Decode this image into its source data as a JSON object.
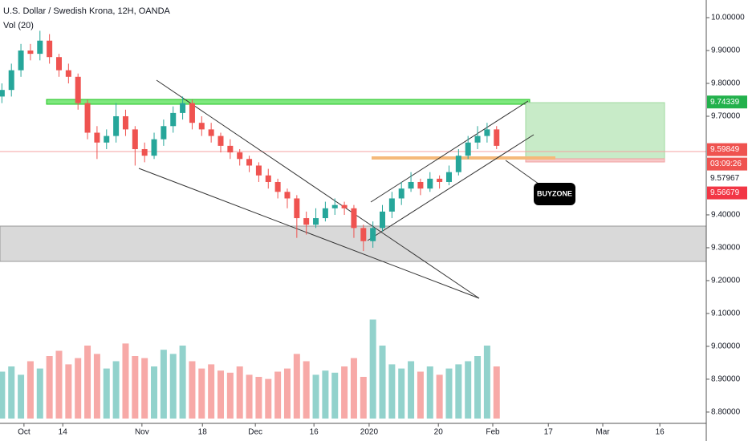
{
  "chart_data": {
    "type": "candlestick",
    "title": "U.S. Dollar / Swedish Krona, 12H, OANDA",
    "subtitle": "Vol (20)",
    "annotation": "BUYZONE",
    "up_color": "#26a69a",
    "down_color": "#ef5350",
    "x": [
      0.5,
      3,
      5.5,
      8,
      10.5,
      13,
      15.5,
      18,
      20.5,
      23,
      25.5,
      28,
      30.5,
      33,
      35.5,
      38,
      40.5,
      43,
      45.5,
      48,
      50.5,
      53,
      55.5,
      58,
      60.5,
      63,
      65.5,
      68,
      70.5,
      73,
      75.5,
      78,
      80.5,
      83,
      85.5,
      88,
      90.5,
      93,
      95.5,
      98,
      100.5,
      103,
      105.5,
      108,
      110.5,
      113,
      115.5,
      118,
      120.5,
      123,
      125.5,
      128,
      130.5
    ],
    "open": [
      9.76,
      9.78,
      9.84,
      9.9,
      9.89,
      9.93,
      9.88,
      9.84,
      9.82,
      9.74,
      9.65,
      9.62,
      9.64,
      9.7,
      9.66,
      9.6,
      9.58,
      9.63,
      9.67,
      9.71,
      9.74,
      9.68,
      9.66,
      9.64,
      9.61,
      9.59,
      9.57,
      9.55,
      9.52,
      9.5,
      9.47,
      9.45,
      9.39,
      9.37,
      9.39,
      9.42,
      9.43,
      9.42,
      9.36,
      9.32,
      9.36,
      9.41,
      9.45,
      9.48,
      9.5,
      9.48,
      9.51,
      9.5,
      9.53,
      9.58,
      9.62,
      9.64,
      9.66
    ],
    "high": [
      9.8,
      9.86,
      9.92,
      9.92,
      9.96,
      9.95,
      9.89,
      9.86,
      9.83,
      9.75,
      9.67,
      9.66,
      9.74,
      9.72,
      9.67,
      9.62,
      9.65,
      9.69,
      9.73,
      9.76,
      9.75,
      9.7,
      9.68,
      9.65,
      9.63,
      9.6,
      9.58,
      9.56,
      9.54,
      9.51,
      9.48,
      9.46,
      9.41,
      9.42,
      9.44,
      9.45,
      9.44,
      9.43,
      9.37,
      9.38,
      9.43,
      9.47,
      9.5,
      9.53,
      9.51,
      9.53,
      9.52,
      9.55,
      9.6,
      9.64,
      9.67,
      9.68,
      9.67
    ],
    "low": [
      9.74,
      9.76,
      9.82,
      9.87,
      9.87,
      9.86,
      9.82,
      9.8,
      9.72,
      9.63,
      9.57,
      9.6,
      9.62,
      9.64,
      9.55,
      9.56,
      9.57,
      9.61,
      9.65,
      9.69,
      9.66,
      9.64,
      9.62,
      9.59,
      9.57,
      9.55,
      9.53,
      9.5,
      9.48,
      9.45,
      9.42,
      9.33,
      9.34,
      9.36,
      9.38,
      9.4,
      9.4,
      9.33,
      9.29,
      9.3,
      9.35,
      9.39,
      9.43,
      9.47,
      9.46,
      9.47,
      9.48,
      9.49,
      9.52,
      9.57,
      9.6,
      9.62,
      9.6
    ],
    "close": [
      9.78,
      9.84,
      9.9,
      9.89,
      9.93,
      9.88,
      9.84,
      9.82,
      9.74,
      9.65,
      9.62,
      9.64,
      9.7,
      9.66,
      9.6,
      9.58,
      9.63,
      9.67,
      9.71,
      9.74,
      9.68,
      9.66,
      9.64,
      9.61,
      9.59,
      9.57,
      9.55,
      9.52,
      9.5,
      9.47,
      9.45,
      9.39,
      9.37,
      9.39,
      9.42,
      9.43,
      9.42,
      9.36,
      9.32,
      9.36,
      9.41,
      9.45,
      9.48,
      9.5,
      9.48,
      9.51,
      9.5,
      9.53,
      9.58,
      9.62,
      9.64,
      9.66,
      9.61
    ],
    "volume": [
      45,
      50,
      42,
      55,
      48,
      60,
      65,
      52,
      58,
      70,
      62,
      48,
      55,
      72,
      60,
      58,
      50,
      66,
      62,
      70,
      55,
      48,
      52,
      46,
      44,
      50,
      42,
      40,
      38,
      45,
      48,
      62,
      55,
      42,
      46,
      44,
      50,
      58,
      40,
      95,
      70,
      52,
      48,
      55,
      45,
      50,
      42,
      48,
      52,
      55,
      60,
      70,
      50
    ],
    "vlim": [
      0,
      100
    ],
    "xlim": [
      0,
      185.6
    ],
    "xticks": [
      {
        "value": 6.3,
        "label": "Oct"
      },
      {
        "value": 16.5,
        "label": "14"
      },
      {
        "value": 37.3,
        "label": "Nov"
      },
      {
        "value": 53.2,
        "label": "18"
      },
      {
        "value": 67.1,
        "label": "Dec"
      },
      {
        "value": 82.5,
        "label": "16"
      },
      {
        "value": 97,
        "label": "2020"
      },
      {
        "value": 115.2,
        "label": "20"
      },
      {
        "value": 129.5,
        "label": "Feb"
      },
      {
        "value": 144.1,
        "label": "17"
      },
      {
        "value": 158.4,
        "label": "Mar"
      },
      {
        "value": 173.4,
        "label": "16"
      }
    ],
    "ylim": [
      8.712,
      10.0537
    ],
    "yticks": [
      {
        "value": 10.0,
        "label": "10.00000"
      },
      {
        "value": 9.9,
        "label": "9.90000"
      },
      {
        "value": 9.8,
        "label": "9.80000"
      },
      {
        "value": 9.7,
        "label": "9.70000"
      },
      {
        "value": 9.4,
        "label": "9.40000"
      },
      {
        "value": 9.3,
        "label": "9.30000"
      },
      {
        "value": 9.2,
        "label": "9.20000"
      },
      {
        "value": 9.1,
        "label": "9.10000"
      },
      {
        "value": 9.0,
        "label": "9.00000"
      },
      {
        "value": 8.9,
        "label": "8.90000"
      },
      {
        "value": 8.8,
        "label": "8.80000"
      }
    ],
    "price_labels": [
      {
        "value": 9.74339,
        "color": "#22b14c"
      },
      {
        "value": 9.59849,
        "color": "#ef5350"
      },
      {
        "text": "03:09:26",
        "color": "#ef5350"
      },
      {
        "value": 9.57967,
        "color": null
      },
      {
        "value": 9.56679,
        "color": "#f23645"
      }
    ]
  }
}
